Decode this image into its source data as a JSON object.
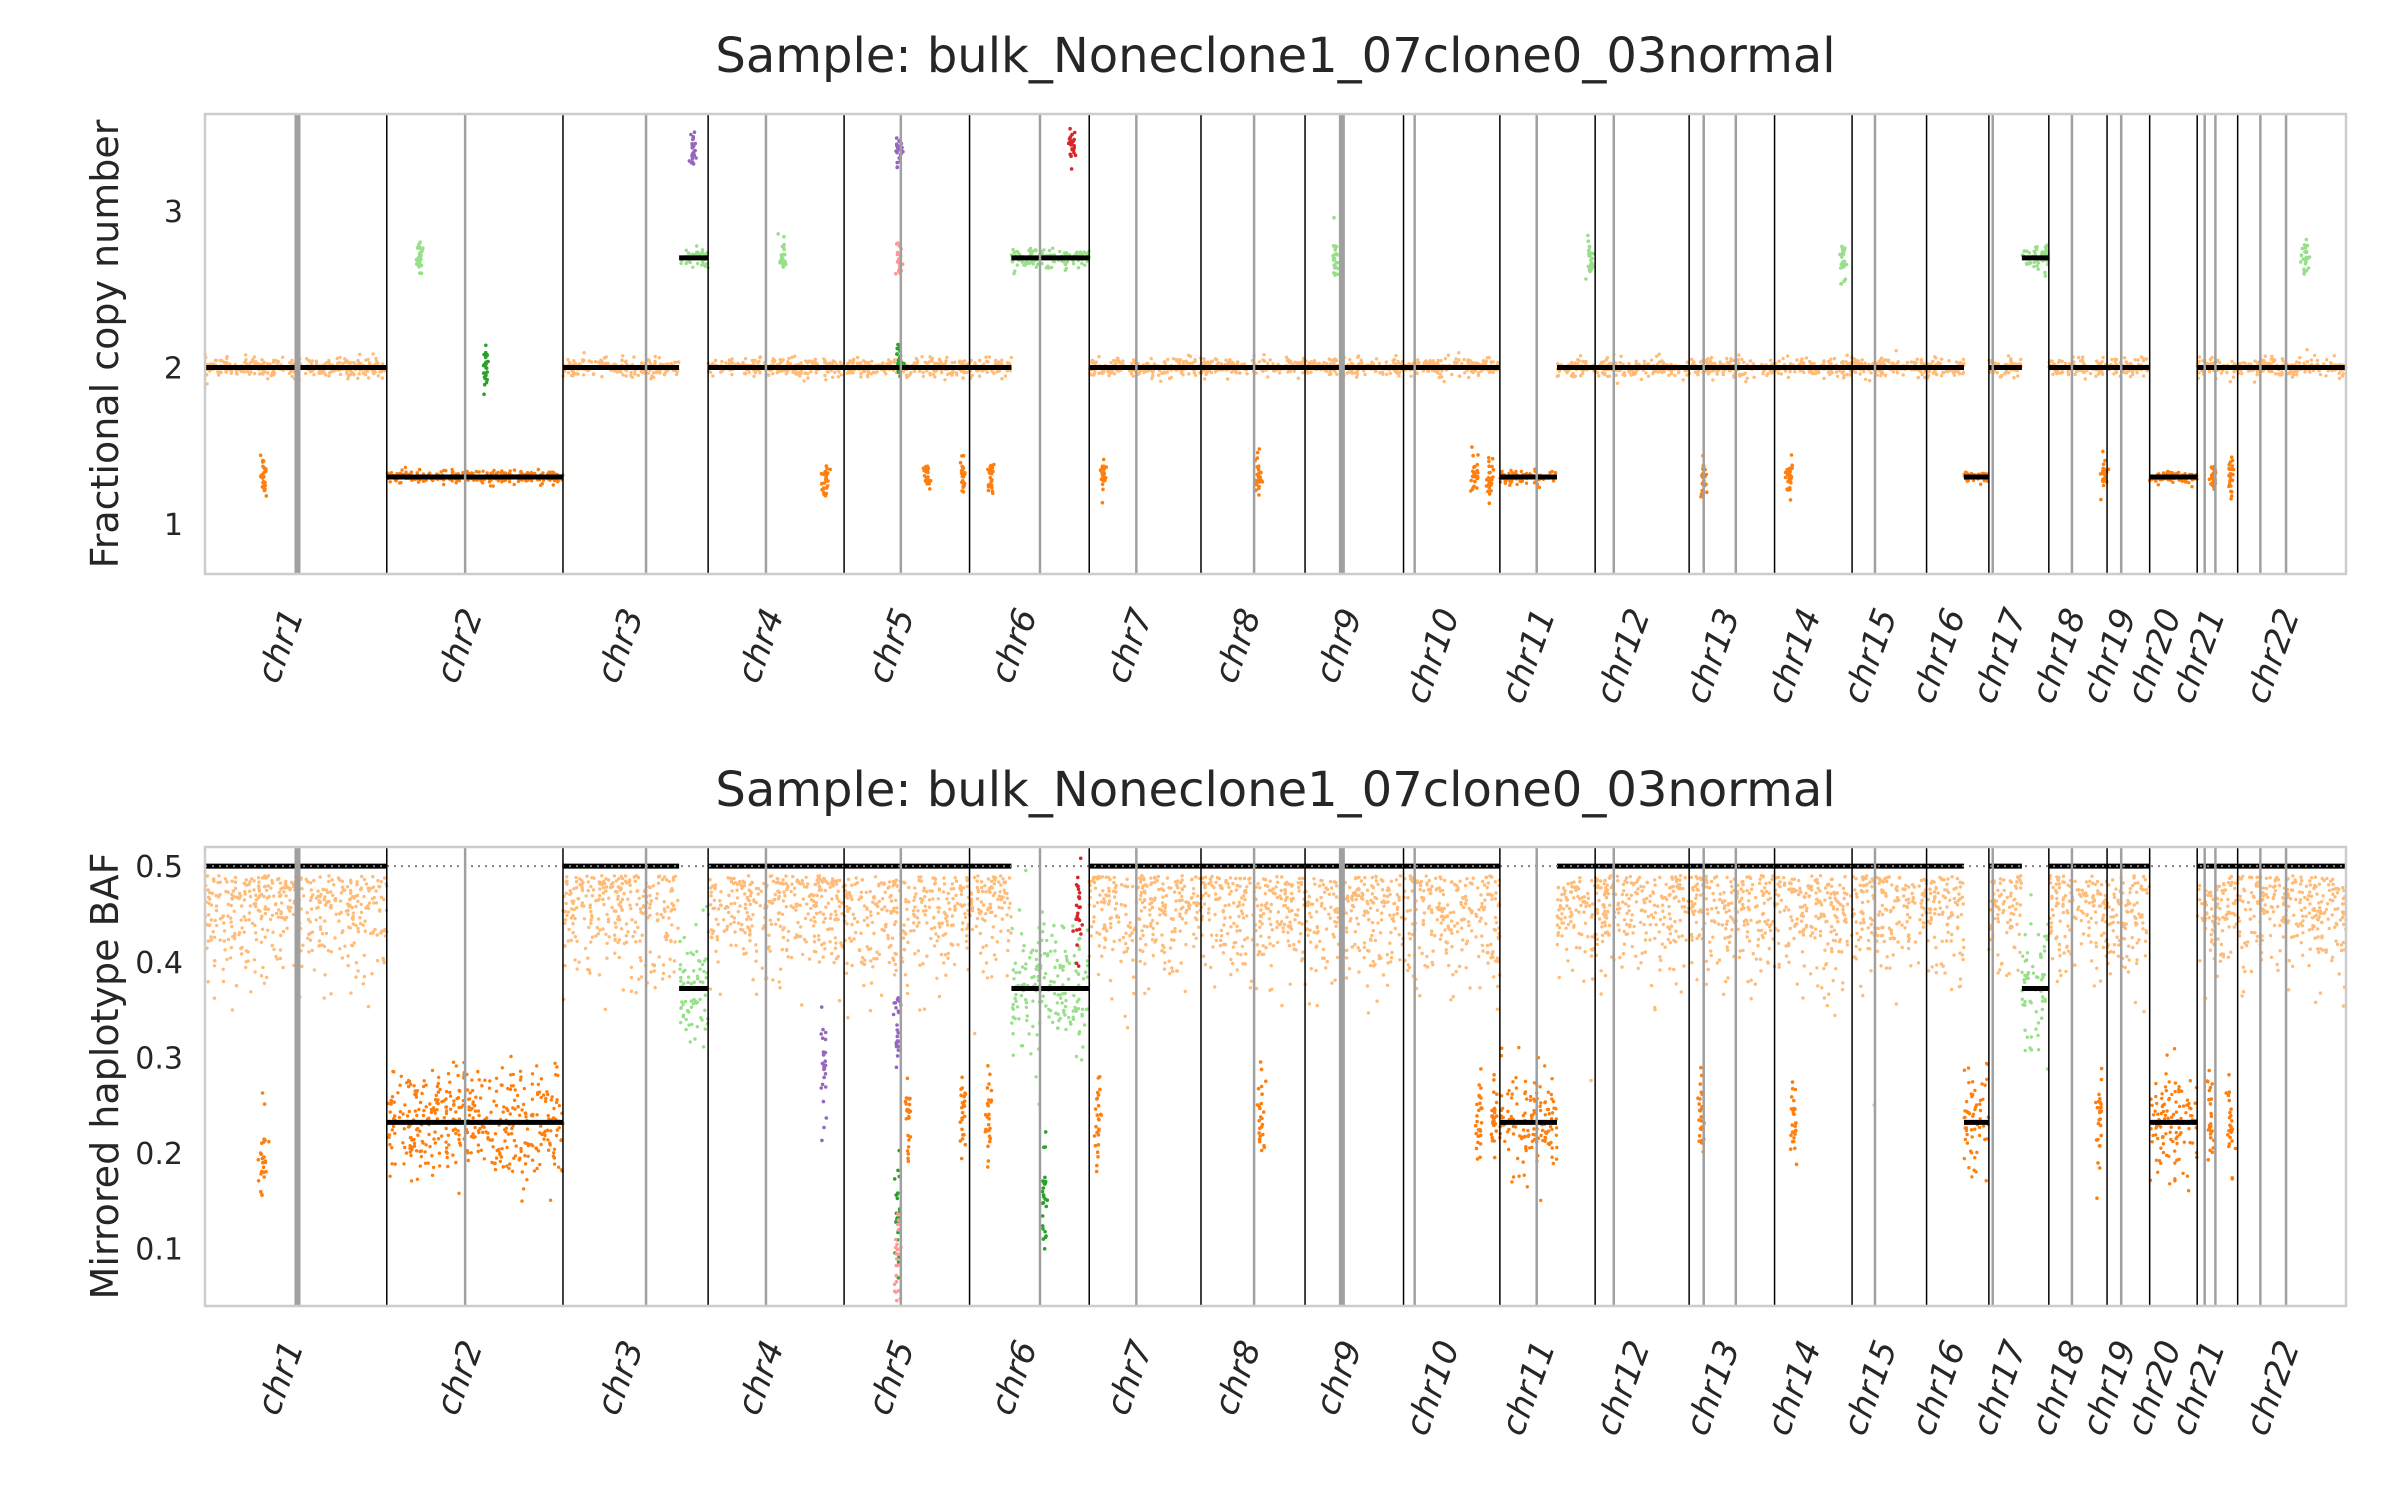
{
  "chart_data": [
    {
      "type": "scatter",
      "title": "Sample: bulk_Noneclone1_07clone0_03normal",
      "xlabel": "",
      "ylabel": "Fractional copy number",
      "ylim": [
        0.68,
        3.62
      ],
      "yticks": [
        1,
        2,
        3
      ],
      "grid": false,
      "chromosomes": [
        "chr1",
        "chr2",
        "chr3",
        "chr4",
        "chr5",
        "chr6",
        "chr7",
        "chr8",
        "chr9",
        "chr10",
        "chr11",
        "chr12",
        "chr13",
        "chr14",
        "chr15",
        "chr16",
        "chr17",
        "chr18",
        "chr19",
        "chr20",
        "chr21",
        "chr22"
      ],
      "segments": [
        {
          "chrom": "chr1",
          "start": 0.0,
          "end": 0.05,
          "value": 2.0
        },
        {
          "chrom": "chr1",
          "start": 0.05,
          "end": 0.085,
          "value": 2.0
        },
        {
          "chrom": "chr2",
          "start": 0.085,
          "end": 0.17,
          "value": 1.3
        },
        {
          "chrom": "chr3",
          "start": 0.17,
          "end": 0.235,
          "value": 2.0
        },
        {
          "chrom": "chr3",
          "start": 0.235,
          "end": 0.247,
          "value": 2.7
        },
        {
          "chrom": "chr4",
          "start": 0.247,
          "end": 0.31,
          "value": 2.0
        },
        {
          "chrom": "chr5",
          "start": 0.31,
          "end": 0.37,
          "value": 2.0
        },
        {
          "chrom": "chr6",
          "start": 0.37,
          "end": 0.395,
          "value": 2.0
        },
        {
          "chrom": "chr6",
          "start": 0.395,
          "end": 0.428,
          "value": 2.7
        },
        {
          "chrom": "chr7",
          "start": 0.428,
          "end": 0.5,
          "value": 2.0
        },
        {
          "chrom": "chr8",
          "start": 0.5,
          "end": 0.56,
          "value": 2.0
        },
        {
          "chrom": "chr9",
          "start": 0.56,
          "end": 0.633,
          "value": 2.0
        },
        {
          "chrom": "chr10",
          "start": 0.633,
          "end": 0.655,
          "value": 2.0
        },
        {
          "chrom": "chr11",
          "start": 0.633,
          "end": 0.66,
          "value": 1.3
        },
        {
          "chrom": "chr11",
          "start": 0.66,
          "end": 0.675,
          "value": 2.0
        },
        {
          "chrom": "chr12",
          "start": 0.675,
          "end": 0.745,
          "value": 2.0
        },
        {
          "chrom": "chr13",
          "start": 0.745,
          "end": 0.79,
          "value": 2.0
        },
        {
          "chrom": "chr14",
          "start": 0.79,
          "end": 0.837,
          "value": 2.0
        },
        {
          "chrom": "chr15",
          "start": 0.837,
          "end": 0.878,
          "value": 2.0
        },
        {
          "chrom": "chr16",
          "start": 0.878,
          "end": 0.905,
          "value": 1.3
        },
        {
          "chrom": "chr17",
          "start": 0.905,
          "end": 0.945,
          "value": 2.0
        },
        {
          "chrom": "chr17",
          "start": 0.945,
          "end": 0.955,
          "value": 2.7
        },
        {
          "chrom": "chr18",
          "start": 0.955,
          "end": 0.99,
          "value": 2.0
        },
        {
          "chrom": "chr19",
          "start": 0.99,
          "end": 1.02,
          "value": 2.0
        },
        {
          "chrom": "chr20",
          "start": 1.02,
          "end": 1.06,
          "value": 1.3
        },
        {
          "chrom": "chr21",
          "start": 1.06,
          "end": 1.08,
          "value": 2.0
        },
        {
          "chrom": "chr22",
          "start": 1.08,
          "end": 1.1,
          "value": 2.0
        }
      ],
      "colors": {
        "gray": "#ffbb78",
        "gain": "#98df8a",
        "loss": "#ff7f0e",
        "amp": "#9467bd",
        "amp2": "#d62728",
        "pinkish": "#ff9896",
        "dkgreen": "#2ca02c"
      }
    },
    {
      "type": "scatter",
      "title": "Sample: bulk_Noneclone1_07clone0_03normal",
      "xlabel": "",
      "ylabel": "Mirrored haplotype BAF",
      "ylim": [
        0.04,
        0.52
      ],
      "yticks": [
        0.1,
        0.2,
        0.3,
        0.4,
        0.5
      ],
      "reference_line": 0.5,
      "grid": false,
      "chromosomes": [
        "chr1",
        "chr2",
        "chr3",
        "chr4",
        "chr5",
        "chr6",
        "chr7",
        "chr8",
        "chr9",
        "chr10",
        "chr11",
        "chr12",
        "chr13",
        "chr14",
        "chr15",
        "chr16",
        "chr17",
        "chr18",
        "chr19",
        "chr20",
        "chr21",
        "chr22"
      ]
    }
  ]
}
